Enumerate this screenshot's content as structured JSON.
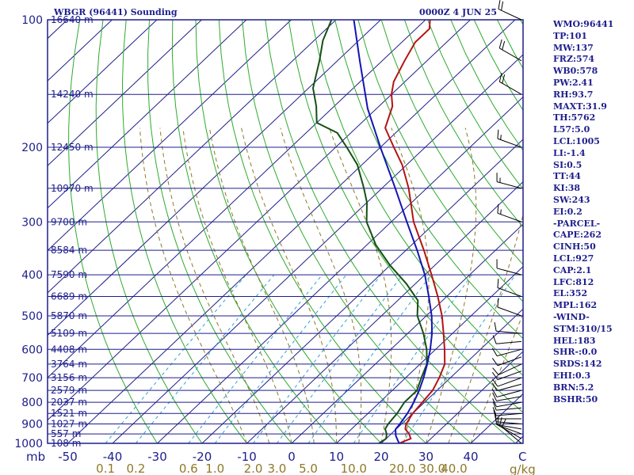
{
  "header": {
    "title": "WBGR (96441) Sounding",
    "datetime": "0000Z  4 JUN 25"
  },
  "indices": [
    "WMO:96441",
    "TP:101",
    "MW:137",
    "FRZ:574",
    "WB0:578",
    "PW:2.41",
    "RH:93.7",
    "MAXT:31.9",
    "TH:5762",
    "L57:5.0",
    "LCL:1005",
    "LI:-1.4",
    "SI:0.5",
    "TT:44",
    "KI:38",
    "SW:243",
    "EI:0.2",
    "-PARCEL-",
    "CAPE:262",
    "CINH:50",
    "LCL:927",
    "CAP:2.1",
    "LFC:812",
    "EL:352",
    "MPL:162",
    "-WIND-",
    "STM:310/15",
    "HEL:183",
    "SHR-:0.0",
    "SRDS:142",
    "EHI:0.3",
    "BRN:5.2",
    "BSHR:50"
  ],
  "colors": {
    "frame": "#1e1e8c",
    "temperature": "#b41414",
    "dewpoint": "#145014",
    "parcel": "#1414b4",
    "dry_adiabat": "#2eaa2e",
    "moist_adiabat": "#8c7a28",
    "mixing_ratio": "#2ea2d2",
    "wind_barb": "#000000"
  },
  "chart_data": {
    "type": "skew-t log-p",
    "pressure_axis": {
      "unit_label": "mb",
      "range": [
        100,
        1000
      ],
      "scale": "log",
      "ticks": [
        "100",
        "200",
        "300",
        "400",
        "500",
        "600",
        "700",
        "800",
        "900",
        "1000"
      ]
    },
    "temperature_axis": {
      "unit_label": "C",
      "ticks": [
        "-50",
        "-40",
        "-30",
        "-20",
        "-10",
        "0",
        "10",
        "20",
        "30",
        "40"
      ]
    },
    "mixing_ratio_axis": {
      "unit_label": "g/kg",
      "ticks": [
        "0.1",
        "0.2",
        "0.6",
        "1.0",
        "2.0",
        "3.0",
        "5.0",
        "10.0",
        "20.0",
        "30.0",
        "40.0"
      ]
    },
    "height_levels": [
      {
        "p": 100,
        "label": "16640 m"
      },
      {
        "p": 150,
        "label": "14240 m"
      },
      {
        "p": 200,
        "label": "12450 m"
      },
      {
        "p": 250,
        "label": "10970 m"
      },
      {
        "p": 300,
        "label": "9700 m"
      },
      {
        "p": 350,
        "label": "8584 m"
      },
      {
        "p": 400,
        "label": "7590 m"
      },
      {
        "p": 450,
        "label": "6689 m"
      },
      {
        "p": 500,
        "label": "5870 m"
      },
      {
        "p": 550,
        "label": "5109 m"
      },
      {
        "p": 600,
        "label": "4408 m"
      },
      {
        "p": 650,
        "label": "3764 m"
      },
      {
        "p": 700,
        "label": "3156 m"
      },
      {
        "p": 750,
        "label": "2579 m"
      },
      {
        "p": 800,
        "label": "2037 m"
      },
      {
        "p": 850,
        "label": "1521 m"
      },
      {
        "p": 900,
        "label": "1027 m"
      },
      {
        "p": 950,
        "label": "557 m"
      },
      {
        "p": 1000,
        "label": "108 m"
      }
    ],
    "series": [
      {
        "key": "temperature",
        "points": [
          [
            1005,
            24.5
          ],
          [
            1000,
            24.0
          ],
          [
            975,
            25.5
          ],
          [
            950,
            24.0
          ],
          [
            925,
            22.0
          ],
          [
            900,
            21.0
          ],
          [
            850,
            20.0
          ],
          [
            800,
            19.5
          ],
          [
            750,
            19.0
          ],
          [
            700,
            17.5
          ],
          [
            650,
            15.5
          ],
          [
            600,
            12.0
          ],
          [
            550,
            8.0
          ],
          [
            500,
            3.5
          ],
          [
            450,
            -2.0
          ],
          [
            400,
            -8.5
          ],
          [
            350,
            -16.0
          ],
          [
            300,
            -25.0
          ],
          [
            250,
            -34.0
          ],
          [
            220,
            -41.0
          ],
          [
            200,
            -47.0
          ],
          [
            180,
            -53.5
          ],
          [
            160,
            -57.0
          ],
          [
            150,
            -60.0
          ],
          [
            140,
            -62.5
          ],
          [
            125,
            -65.0
          ],
          [
            113,
            -67.0
          ],
          [
            105,
            -67.0
          ],
          [
            100,
            -69.0
          ]
        ]
      },
      {
        "key": "dewpoint",
        "points": [
          [
            1005,
            20.5
          ],
          [
            1000,
            19.5
          ],
          [
            975,
            20.0
          ],
          [
            950,
            19.0
          ],
          [
            925,
            17.5
          ],
          [
            900,
            17.0
          ],
          [
            850,
            16.5
          ],
          [
            800,
            15.5
          ],
          [
            750,
            15.5
          ],
          [
            700,
            13.5
          ],
          [
            650,
            11.5
          ],
          [
            600,
            8.0
          ],
          [
            550,
            3.5
          ],
          [
            500,
            -2.0
          ],
          [
            460,
            -5.5
          ],
          [
            420,
            -12.0
          ],
          [
            380,
            -20.0
          ],
          [
            340,
            -28.0
          ],
          [
            300,
            -35.5
          ],
          [
            270,
            -40.0
          ],
          [
            250,
            -44.0
          ],
          [
            220,
            -51.0
          ],
          [
            200,
            -57.5
          ],
          [
            185,
            -63.0
          ],
          [
            175,
            -70.0
          ],
          [
            160,
            -74.0
          ],
          [
            145,
            -79.0
          ],
          [
            125,
            -84.0
          ],
          [
            112,
            -88.0
          ],
          [
            100,
            -91.0
          ]
        ]
      },
      {
        "key": "parcel",
        "points": [
          [
            1000,
            24.0
          ],
          [
            960,
            21.5
          ],
          [
            927,
            19.9
          ],
          [
            900,
            19.6
          ],
          [
            850,
            18.8
          ],
          [
            800,
            17.6
          ],
          [
            750,
            16.0
          ],
          [
            700,
            14.0
          ],
          [
            650,
            11.6
          ],
          [
            600,
            8.8
          ],
          [
            550,
            5.4
          ],
          [
            500,
            1.2
          ],
          [
            450,
            -4.0
          ],
          [
            400,
            -10.0
          ],
          [
            352,
            -17.2
          ],
          [
            300,
            -26.5
          ],
          [
            250,
            -37.0
          ],
          [
            200,
            -50.0
          ],
          [
            162,
            -62.0
          ],
          [
            125,
            -75.0
          ],
          [
            100,
            -86.0
          ]
        ]
      }
    ],
    "wind_barbs": [
      {
        "p": 1000,
        "dir": 310,
        "spd": 10
      },
      {
        "p": 975,
        "dir": 300,
        "spd": 10
      },
      {
        "p": 950,
        "dir": 290,
        "spd": 10
      },
      {
        "p": 925,
        "dir": 280,
        "spd": 10
      },
      {
        "p": 900,
        "dir": 275,
        "spd": 10
      },
      {
        "p": 875,
        "dir": 270,
        "spd": 10
      },
      {
        "p": 850,
        "dir": 265,
        "spd": 10
      },
      {
        "p": 825,
        "dir": 265,
        "spd": 10
      },
      {
        "p": 800,
        "dir": 260,
        "spd": 10
      },
      {
        "p": 775,
        "dir": 260,
        "spd": 10
      },
      {
        "p": 750,
        "dir": 255,
        "spd": 10
      },
      {
        "p": 725,
        "dir": 255,
        "spd": 10
      },
      {
        "p": 700,
        "dir": 250,
        "spd": 10
      },
      {
        "p": 675,
        "dir": 250,
        "spd": 10
      },
      {
        "p": 650,
        "dir": 245,
        "spd": 10
      },
      {
        "p": 625,
        "dir": 250,
        "spd": 10
      },
      {
        "p": 600,
        "dir": 255,
        "spd": 10
      },
      {
        "p": 575,
        "dir": 265,
        "spd": 10
      },
      {
        "p": 550,
        "dir": 275,
        "spd": 10
      },
      {
        "p": 500,
        "dir": 290,
        "spd": 10
      },
      {
        "p": 450,
        "dir": 290,
        "spd": 10
      },
      {
        "p": 400,
        "dir": 285,
        "spd": 10
      },
      {
        "p": 300,
        "dir": 290,
        "spd": 15
      },
      {
        "p": 250,
        "dir": 285,
        "spd": 15
      },
      {
        "p": 200,
        "dir": 290,
        "spd": 15
      },
      {
        "p": 150,
        "dir": 300,
        "spd": 20
      },
      {
        "p": 125,
        "dir": 300,
        "spd": 20
      },
      {
        "p": 100,
        "dir": 295,
        "spd": 20
      }
    ]
  }
}
